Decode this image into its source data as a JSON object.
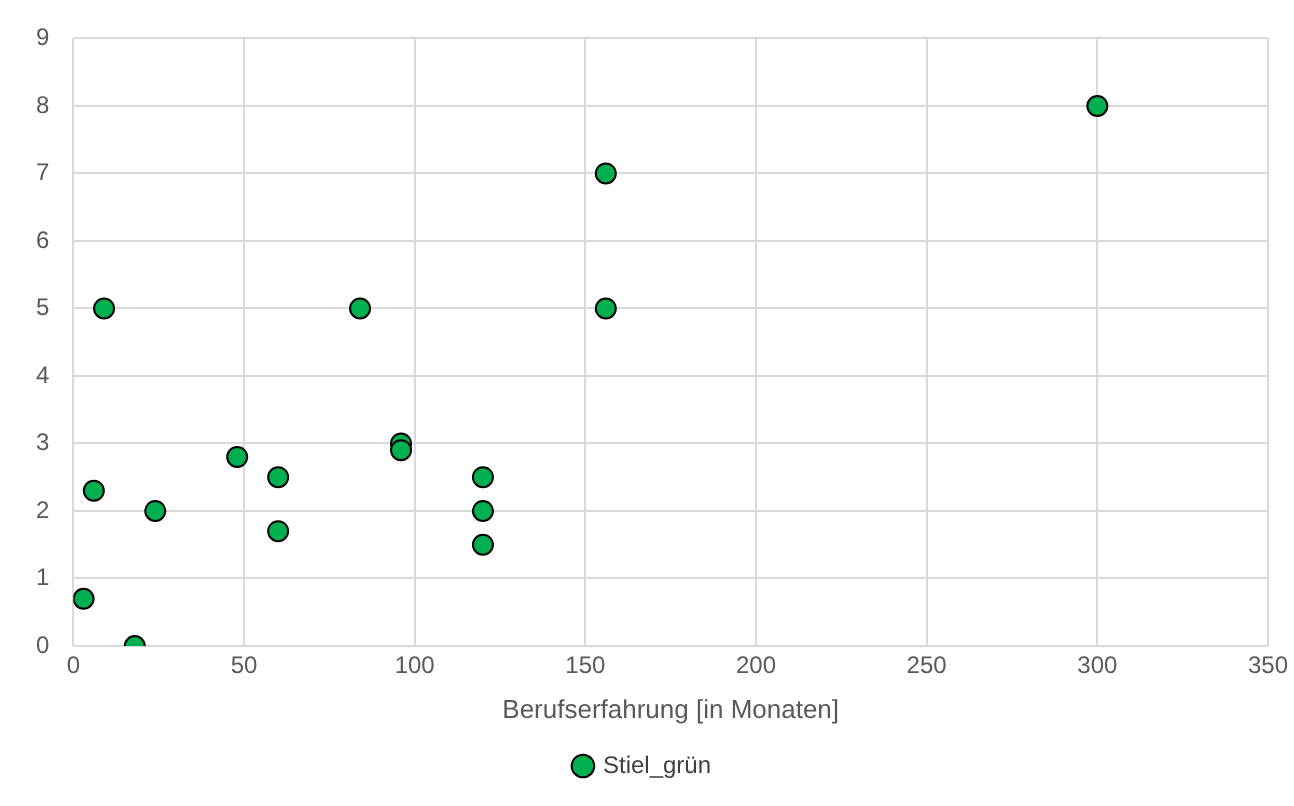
{
  "chart_data": {
    "type": "scatter",
    "xlabel": "Berufserfahrung [in Monaten]",
    "series": [
      {
        "name": "Stiel_grün",
        "color": "#00b050",
        "x": [
          3,
          9,
          6,
          18,
          24,
          48,
          60,
          60,
          84,
          96,
          96,
          120,
          120,
          120,
          156,
          156,
          300
        ],
        "values": [
          0.7,
          5,
          2.3,
          0,
          2,
          2.8,
          2.5,
          1.7,
          5,
          3,
          2.9,
          2.5,
          2,
          1.5,
          7,
          5,
          8
        ]
      }
    ],
    "xlim": [
      0,
      350
    ],
    "xticks": [
      0,
      50,
      100,
      150,
      200,
      250,
      300,
      350
    ],
    "ylim": [
      0,
      9
    ],
    "yticks": [
      0,
      1,
      2,
      3,
      4,
      5,
      6,
      7,
      8,
      9
    ],
    "grid": true,
    "legend": "bottom",
    "marker": "circle"
  }
}
